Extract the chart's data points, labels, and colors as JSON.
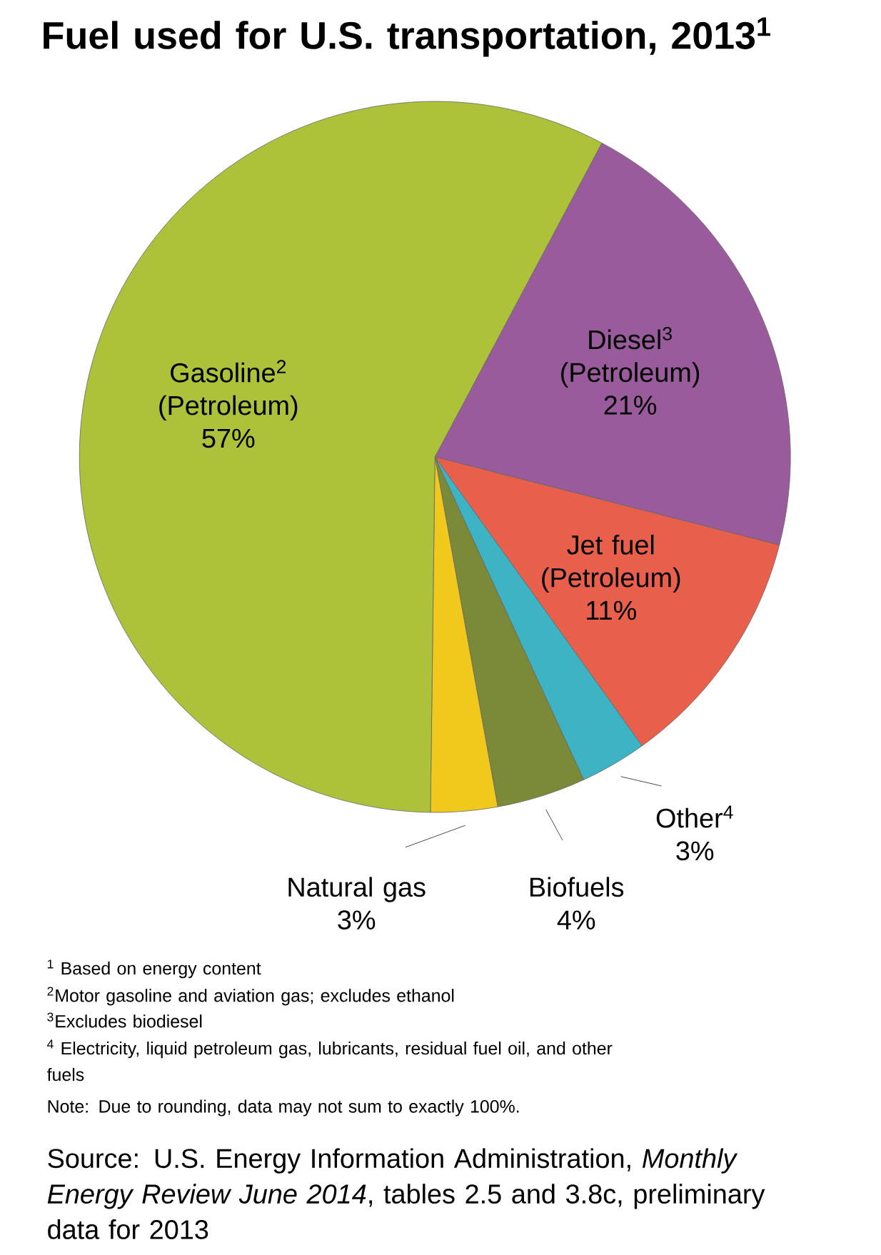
{
  "chart_data": {
    "type": "pie",
    "title": "Fuel used for U.S. transportation, 2013$^{1}$",
    "categories": [
      "Diesel$^{3}$ (Petroleum)",
      "Jet fuel (Petroleum)",
      "Other$^{4}$",
      "Biofuels",
      "Natural gas",
      "Gasoline$^{2}$ (Petroleum)"
    ],
    "values": [
      21,
      11,
      3,
      4,
      3,
      57
    ],
    "value_labels": [
      "21%",
      "11%",
      "3%",
      "4%",
      "3%",
      "57%"
    ],
    "colors": [
      "#9a5b9c",
      "#e8604c",
      "#3db3c3",
      "#7b8a38",
      "#f1c91c",
      "#adc13a"
    ],
    "annotations": [
      "$^{1}$ Based on energy content",
      "$^{2}$Motor gasoline and aviation gas; excludes ethanol",
      "$^{3}$Excludes biodiesel",
      "$^{4}$ Electricity, liquid petroleum gas, lubricants, residual fuel oil, and other fuels",
      "Note: Due to rounding, data may not sum to exactly 100%.",
      "Source: U.S. Energy Information Administration, *Monthly Energy Review June 2014*, tables 2.5 and 3.8c, preliminary data for 2013"
    ]
  }
}
